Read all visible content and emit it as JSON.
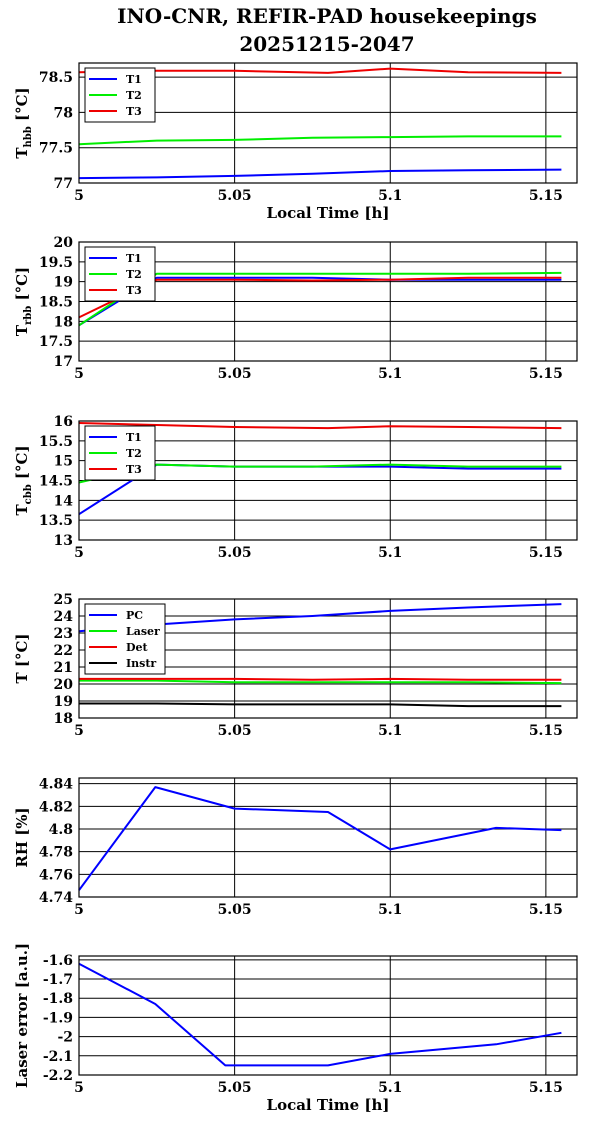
{
  "title": [
    "INO-CNR, REFIR-PAD housekeepings",
    "20251215-2047"
  ],
  "chart_data": [
    {
      "type": "line",
      "ylabel_main": "T",
      "ylabel_sub": "hbb",
      "ylabel_unit": "[°C]",
      "xlabel": "Local Time [h]",
      "xlim": [
        5,
        5.16
      ],
      "ylim": [
        77,
        78.7
      ],
      "xticks": [
        5,
        5.05,
        5.1,
        5.15
      ],
      "xticklabels": [
        "5",
        "5.05",
        "5.1",
        "5.15"
      ],
      "yticks": [
        77,
        77.5,
        78,
        78.5
      ],
      "yticklabels": [
        "77",
        "77.5",
        "78",
        "78.5"
      ],
      "legend": "top-left",
      "grid": true,
      "series": [
        {
          "name": "T1",
          "color": "#0000ff",
          "x": [
            5.0,
            5.025,
            5.05,
            5.075,
            5.1,
            5.125,
            5.155
          ],
          "y": [
            77.07,
            77.08,
            77.1,
            77.13,
            77.17,
            77.18,
            77.19
          ]
        },
        {
          "name": "T2",
          "color": "#00ee00",
          "x": [
            5.0,
            5.025,
            5.05,
            5.075,
            5.1,
            5.125,
            5.155
          ],
          "y": [
            77.55,
            77.6,
            77.61,
            77.64,
            77.65,
            77.66,
            77.66
          ]
        },
        {
          "name": "T3",
          "color": "#ee0000",
          "x": [
            5.0,
            5.025,
            5.05,
            5.08,
            5.1,
            5.125,
            5.155
          ],
          "y": [
            78.57,
            78.59,
            78.59,
            78.56,
            78.62,
            78.57,
            78.56
          ]
        }
      ]
    },
    {
      "type": "line",
      "ylabel_main": "T",
      "ylabel_sub": "rbb",
      "ylabel_unit": "[°C]",
      "xlabel": "",
      "xlim": [
        5,
        5.16
      ],
      "ylim": [
        17,
        20
      ],
      "xticks": [
        5,
        5.05,
        5.1,
        5.15
      ],
      "xticklabels": [
        "5",
        "5.05",
        "5.1",
        "5.15"
      ],
      "yticks": [
        17,
        17.5,
        18,
        18.5,
        19,
        19.5,
        20
      ],
      "yticklabels": [
        "17",
        "17.5",
        "18",
        "18.5",
        "19",
        "19.5",
        "20"
      ],
      "legend": "top-left",
      "grid": true,
      "series": [
        {
          "name": "T1",
          "color": "#0000ff",
          "x": [
            5.0,
            5.025,
            5.05,
            5.075,
            5.1,
            5.125,
            5.155
          ],
          "y": [
            17.9,
            19.1,
            19.1,
            19.1,
            19.05,
            19.05,
            19.05
          ]
        },
        {
          "name": "T2",
          "color": "#00ee00",
          "x": [
            5.0,
            5.025,
            5.05,
            5.075,
            5.1,
            5.125,
            5.155
          ],
          "y": [
            17.9,
            19.2,
            19.2,
            19.2,
            19.2,
            19.2,
            19.22
          ]
        },
        {
          "name": "T3",
          "color": "#ee0000",
          "x": [
            5.0,
            5.025,
            5.05,
            5.075,
            5.1,
            5.125,
            5.155
          ],
          "y": [
            18.1,
            19.05,
            19.05,
            19.03,
            19.05,
            19.1,
            19.1
          ]
        }
      ]
    },
    {
      "type": "line",
      "ylabel_main": "T",
      "ylabel_sub": "cbb",
      "ylabel_unit": "[°C]",
      "xlabel": "",
      "xlim": [
        5,
        5.16
      ],
      "ylim": [
        13,
        16
      ],
      "xticks": [
        5,
        5.05,
        5.1,
        5.15
      ],
      "xticklabels": [
        "5",
        "5.05",
        "5.1",
        "5.15"
      ],
      "yticks": [
        13,
        13.5,
        14,
        14.5,
        15,
        15.5,
        16
      ],
      "yticklabels": [
        "13",
        "13.5",
        "14",
        "14.5",
        "15",
        "15.5",
        "16"
      ],
      "legend": "top-left",
      "grid": true,
      "series": [
        {
          "name": "T1",
          "color": "#0000ff",
          "x": [
            5.0,
            5.025,
            5.05,
            5.075,
            5.1,
            5.125,
            5.155
          ],
          "y": [
            13.65,
            14.9,
            14.85,
            14.85,
            14.85,
            14.8,
            14.8
          ]
        },
        {
          "name": "T2",
          "color": "#00ee00",
          "x": [
            5.0,
            5.025,
            5.05,
            5.075,
            5.1,
            5.125,
            5.155
          ],
          "y": [
            14.45,
            14.9,
            14.85,
            14.85,
            14.9,
            14.85,
            14.85
          ]
        },
        {
          "name": "T3",
          "color": "#ee0000",
          "x": [
            5.0,
            5.025,
            5.05,
            5.08,
            5.1,
            5.125,
            5.155
          ],
          "y": [
            15.95,
            15.9,
            15.85,
            15.82,
            15.87,
            15.85,
            15.82
          ]
        }
      ]
    },
    {
      "type": "line",
      "ylabel_main": "T [°C]",
      "ylabel_sub": "",
      "ylabel_unit": "",
      "xlabel": "",
      "xlim": [
        5,
        5.16
      ],
      "ylim": [
        18,
        25
      ],
      "xticks": [
        5,
        5.05,
        5.1,
        5.15
      ],
      "xticklabels": [
        "5",
        "5.05",
        "5.1",
        "5.15"
      ],
      "yticks": [
        18,
        19,
        20,
        21,
        22,
        23,
        24,
        25
      ],
      "yticklabels": [
        "18",
        "19",
        "20",
        "21",
        "22",
        "23",
        "24",
        "25"
      ],
      "legend": "top-left",
      "grid": true,
      "series": [
        {
          "name": "PC",
          "color": "#0000ff",
          "x": [
            5.0,
            5.025,
            5.05,
            5.075,
            5.1,
            5.125,
            5.155
          ],
          "y": [
            23.1,
            23.5,
            23.8,
            24.0,
            24.3,
            24.5,
            24.7
          ]
        },
        {
          "name": "Laser",
          "color": "#00ee00",
          "x": [
            5.0,
            5.025,
            5.05,
            5.075,
            5.1,
            5.125,
            5.155
          ],
          "y": [
            20.2,
            20.2,
            20.1,
            20.1,
            20.1,
            20.1,
            20.05
          ]
        },
        {
          "name": "Det",
          "color": "#ee0000",
          "x": [
            5.0,
            5.025,
            5.05,
            5.075,
            5.1,
            5.125,
            5.155
          ],
          "y": [
            20.3,
            20.3,
            20.3,
            20.25,
            20.3,
            20.25,
            20.25
          ]
        },
        {
          "name": "Instr",
          "color": "#000000",
          "x": [
            5.0,
            5.025,
            5.05,
            5.075,
            5.1,
            5.125,
            5.155
          ],
          "y": [
            18.85,
            18.85,
            18.8,
            18.8,
            18.8,
            18.7,
            18.7
          ]
        }
      ]
    },
    {
      "type": "line",
      "ylabel_main": "RH [%]",
      "ylabel_sub": "",
      "ylabel_unit": "",
      "xlabel": "",
      "xlim": [
        5,
        5.16
      ],
      "ylim": [
        4.74,
        4.845
      ],
      "xticks": [
        5,
        5.05,
        5.1,
        5.15
      ],
      "xticklabels": [
        "5",
        "5.05",
        "5.1",
        "5.15"
      ],
      "yticks": [
        4.74,
        4.76,
        4.78,
        4.8,
        4.82,
        4.84
      ],
      "yticklabels": [
        "4.74",
        "4.76",
        "4.78",
        "4.8",
        "4.82",
        "4.84"
      ],
      "legend": "none",
      "grid": true,
      "series": [
        {
          "name": "",
          "color": "#0000ff",
          "x": [
            5.0,
            5.0245,
            5.05,
            5.08,
            5.1,
            5.134,
            5.155
          ],
          "y": [
            4.746,
            4.837,
            4.818,
            4.815,
            4.782,
            4.801,
            4.799
          ]
        }
      ]
    },
    {
      "type": "line",
      "ylabel_main": "Laser error [a.u.]",
      "ylabel_sub": "",
      "ylabel_unit": "",
      "xlabel": "Local Time [h]",
      "xlim": [
        5,
        5.16
      ],
      "ylim": [
        -2.2,
        -1.58
      ],
      "xticks": [
        5,
        5.05,
        5.1,
        5.15
      ],
      "xticklabels": [
        "5",
        "5.05",
        "5.1",
        "5.15"
      ],
      "yticks": [
        -2.2,
        -2.1,
        -2,
        -1.9,
        -1.8,
        -1.7,
        -1.6
      ],
      "yticklabels": [
        "-2.2",
        "-2.1",
        "-2",
        "-1.9",
        "-1.8",
        "-1.7",
        "-1.6"
      ],
      "legend": "none",
      "grid": true,
      "series": [
        {
          "name": "",
          "color": "#0000ff",
          "x": [
            5.0,
            5.0245,
            5.047,
            5.08,
            5.1,
            5.134,
            5.155
          ],
          "y": [
            -1.62,
            -1.83,
            -2.15,
            -2.15,
            -2.09,
            -2.04,
            -1.98
          ]
        }
      ]
    }
  ]
}
